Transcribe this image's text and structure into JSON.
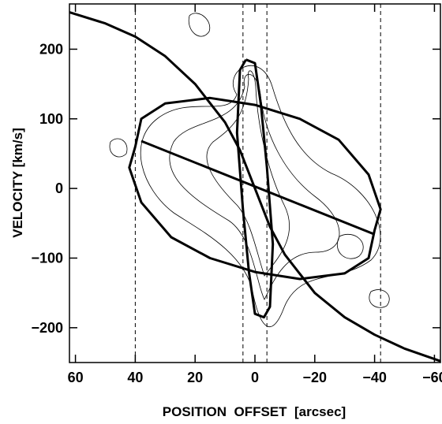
{
  "chart_data": {
    "type": "line",
    "xlabel": "POSITION  OFFSET  [arcsec]",
    "ylabel": "VELOCITY [km/s]",
    "xlim": [
      62,
      -62
    ],
    "ylim": [
      -250,
      265
    ],
    "xticks": [
      60,
      40,
      20,
      0,
      {
        "value": -20,
        "label": "−20"
      },
      {
        "value": -40,
        "label": "−40"
      },
      {
        "value": -60,
        "label": "−60"
      }
    ],
    "yticks": [
      200,
      100,
      0,
      {
        "value": -100,
        "label": "−100"
      },
      {
        "value": -200,
        "label": "−200"
      }
    ],
    "vlines": [
      40,
      4,
      -4,
      -42
    ],
    "series": [
      {
        "color": "#000000",
        "x": [
          62,
          50,
          40,
          30,
          20,
          10,
          5,
          0,
          -5,
          -10,
          -20,
          -30,
          -40,
          -50,
          -62
        ],
        "values": [
          253,
          237,
          218,
          190,
          150,
          95,
          55,
          0,
          -55,
          -95,
          -150,
          -185,
          -210,
          -230,
          -248
        ]
      },
      {
        "color": "#000000",
        "x": [
          40,
          38,
          30,
          15,
          0,
          -15,
          -28,
          -38,
          -42,
          -40,
          -38,
          -30,
          -15,
          0,
          15,
          28,
          38,
          42,
          40
        ],
        "values": [
          60,
          100,
          122,
          130,
          120,
          100,
          70,
          20,
          -30,
          -60,
          -100,
          -122,
          -130,
          -120,
          -100,
          -70,
          -20,
          30,
          60
        ]
      },
      {
        "color": "#000000",
        "x": [
          3,
          0,
          -2,
          -4,
          -6,
          -5,
          -3,
          0,
          2,
          4,
          6,
          5,
          3
        ],
        "values": [
          185,
          180,
          120,
          30,
          -80,
          -170,
          -185,
          -180,
          -120,
          -30,
          80,
          170,
          185
        ]
      },
      {
        "color": "#000000",
        "x": [
          38,
          -40
        ],
        "values": [
          68,
          -66
        ]
      }
    ]
  }
}
